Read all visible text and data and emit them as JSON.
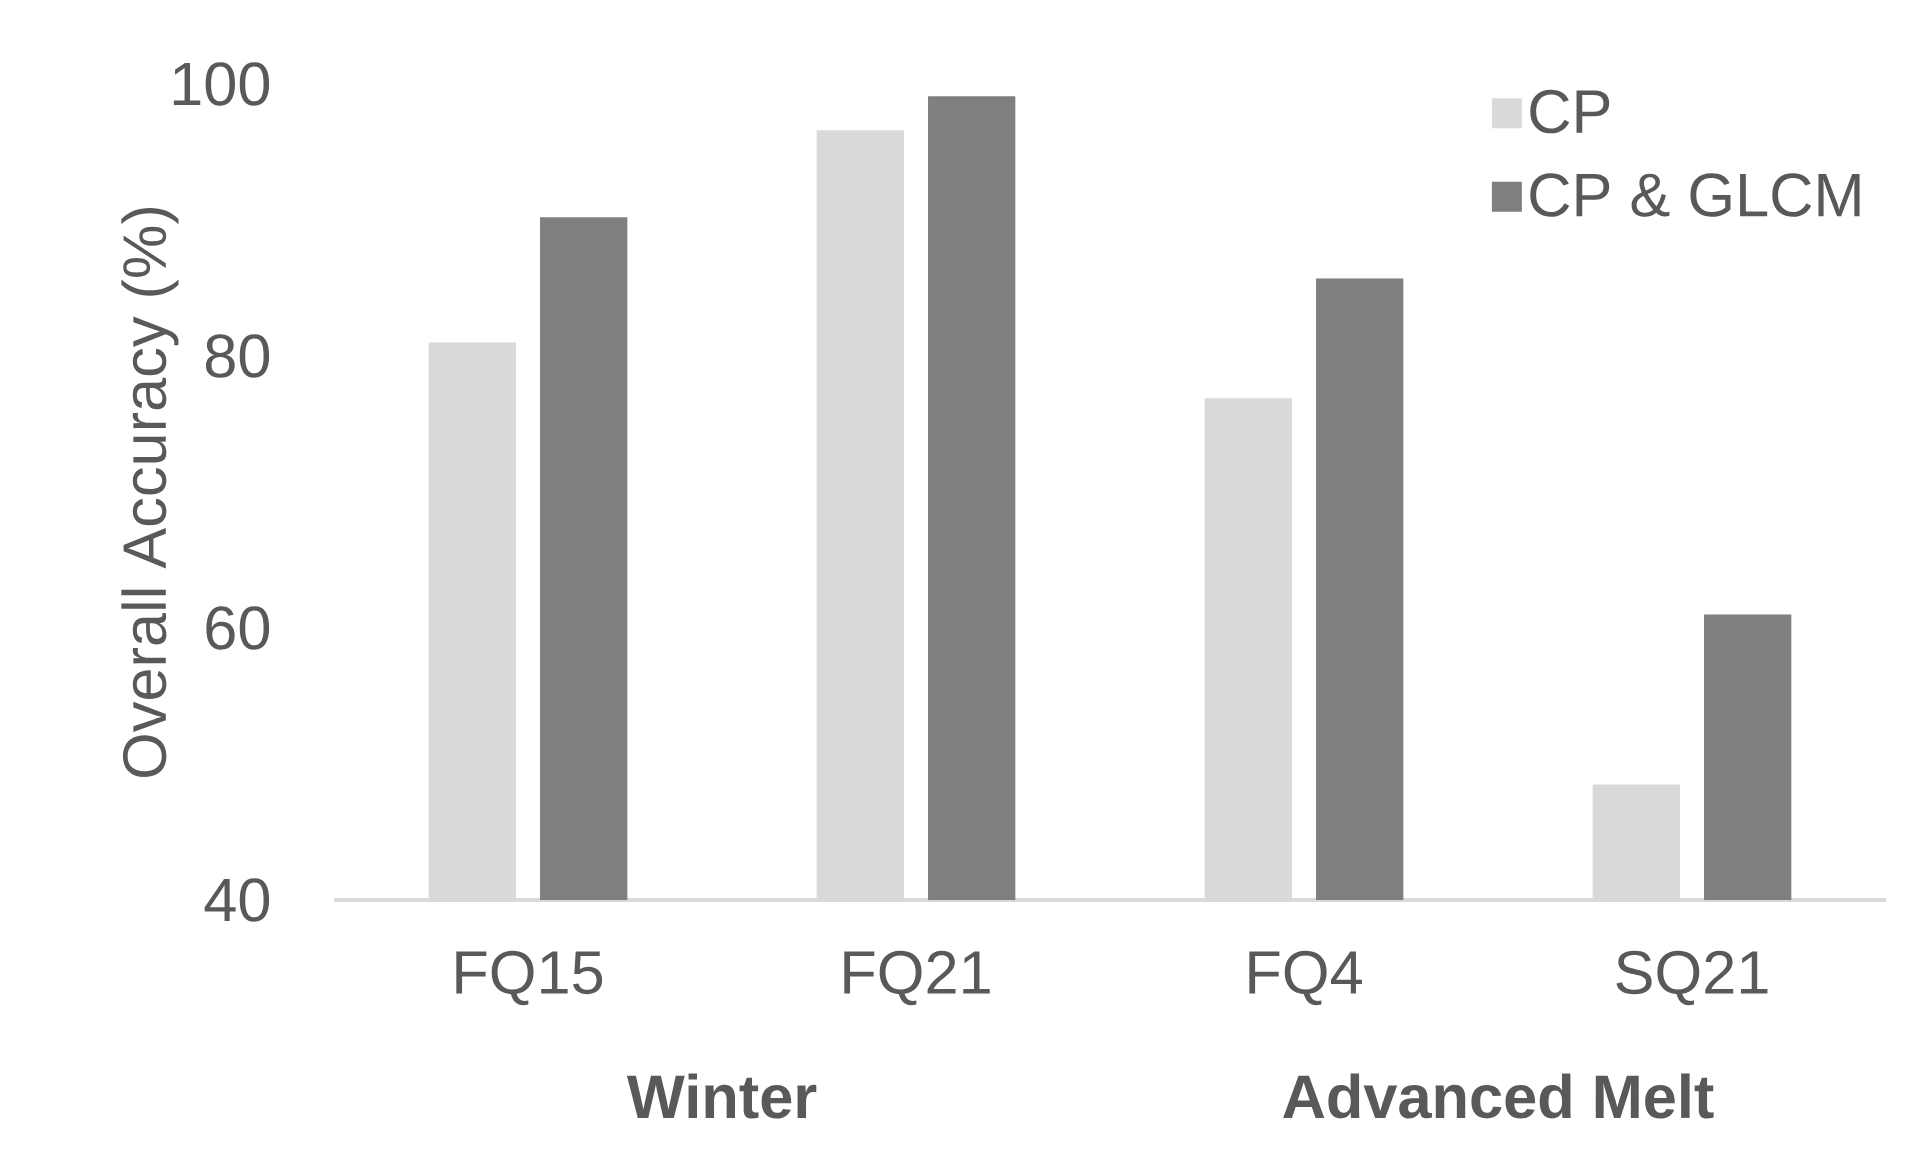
{
  "chart_data": {
    "type": "bar",
    "ylabel": "Overall Accuracy (%)",
    "categories": [
      "FQ15",
      "FQ21",
      "FQ4",
      "SQ21"
    ],
    "series": [
      {
        "name": "CP",
        "color": "#d9d9d9",
        "values": [
          81.0,
          96.6,
          76.9,
          48.5
        ]
      },
      {
        "name": "CP & GLCM",
        "color": "#7f7f7f",
        "values": [
          90.2,
          99.1,
          85.7,
          61.0
        ]
      }
    ],
    "ylim": [
      40,
      100
    ],
    "yticks": [
      40,
      60,
      80,
      100
    ],
    "legend": "top right",
    "annotations": [
      "Winter",
      "Advanced Melt"
    ]
  }
}
